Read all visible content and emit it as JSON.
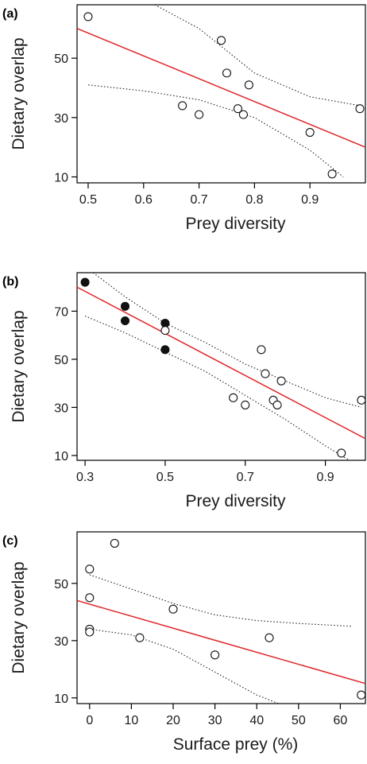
{
  "colors": {
    "fit_line": "#e0262a",
    "ci_line": "#222222",
    "axis": "#000000",
    "open_marker_fill": "#ffffff",
    "filled_marker_fill": "#111111"
  },
  "chart_data": [
    {
      "type": "scatter",
      "panel": "(a)",
      "xlabel": "Prey diversity",
      "ylabel": "Dietary overlap",
      "xlim": [
        0.48,
        1.0
      ],
      "ylim": [
        8,
        68
      ],
      "xticks": [
        0.5,
        0.6,
        0.7,
        0.8,
        0.9
      ],
      "xtick_labels": [
        "0.5",
        "0.6",
        "0.7",
        "0.8",
        "0.9"
      ],
      "yticks": [
        10,
        30,
        50
      ],
      "ytick_labels": [
        "10",
        "30",
        "50"
      ],
      "points": [
        {
          "x": 0.5,
          "y": 64,
          "filled": false
        },
        {
          "x": 0.67,
          "y": 34,
          "filled": false
        },
        {
          "x": 0.7,
          "y": 31,
          "filled": false
        },
        {
          "x": 0.74,
          "y": 56,
          "filled": false
        },
        {
          "x": 0.75,
          "y": 45,
          "filled": false
        },
        {
          "x": 0.77,
          "y": 33,
          "filled": false
        },
        {
          "x": 0.78,
          "y": 31,
          "filled": false
        },
        {
          "x": 0.79,
          "y": 41,
          "filled": false
        },
        {
          "x": 0.9,
          "y": 25,
          "filled": false
        },
        {
          "x": 0.94,
          "y": 11,
          "filled": false
        },
        {
          "x": 0.99,
          "y": 33,
          "filled": false
        }
      ],
      "fit": [
        [
          0.48,
          60
        ],
        [
          1.0,
          20
        ]
      ],
      "ci_upper": [
        [
          0.62,
          68
        ],
        [
          0.7,
          60
        ],
        [
          0.8,
          45
        ],
        [
          0.9,
          37
        ],
        [
          0.99,
          34
        ]
      ],
      "ci_lower": [
        [
          0.5,
          41
        ],
        [
          0.6,
          39
        ],
        [
          0.7,
          36
        ],
        [
          0.8,
          30
        ],
        [
          0.9,
          19
        ],
        [
          0.96,
          10
        ]
      ]
    },
    {
      "type": "scatter",
      "panel": "(b)",
      "xlabel": "Prey diversity",
      "ylabel": "Dietary overlap",
      "xlim": [
        0.28,
        1.0
      ],
      "ylim": [
        8,
        86
      ],
      "xticks": [
        0.3,
        0.5,
        0.7,
        0.9
      ],
      "xtick_labels": [
        "0.3",
        "0.5",
        "0.7",
        "0.9"
      ],
      "yticks": [
        10,
        30,
        50,
        70
      ],
      "ytick_labels": [
        "10",
        "30",
        "50",
        "70"
      ],
      "points": [
        {
          "x": 0.3,
          "y": 82,
          "filled": true
        },
        {
          "x": 0.4,
          "y": 72,
          "filled": true
        },
        {
          "x": 0.4,
          "y": 66,
          "filled": true
        },
        {
          "x": 0.5,
          "y": 65,
          "filled": true
        },
        {
          "x": 0.5,
          "y": 62,
          "filled": false
        },
        {
          "x": 0.5,
          "y": 54,
          "filled": true
        },
        {
          "x": 0.67,
          "y": 34,
          "filled": false
        },
        {
          "x": 0.7,
          "y": 31,
          "filled": false
        },
        {
          "x": 0.74,
          "y": 54,
          "filled": false
        },
        {
          "x": 0.75,
          "y": 44,
          "filled": false
        },
        {
          "x": 0.77,
          "y": 33,
          "filled": false
        },
        {
          "x": 0.78,
          "y": 31,
          "filled": false
        },
        {
          "x": 0.79,
          "y": 41,
          "filled": false
        },
        {
          "x": 0.94,
          "y": 11,
          "filled": false
        },
        {
          "x": 0.99,
          "y": 33,
          "filled": false
        }
      ],
      "fit": [
        [
          0.28,
          80
        ],
        [
          1.0,
          17
        ]
      ],
      "ci_upper": [
        [
          0.32,
          86
        ],
        [
          0.4,
          76
        ],
        [
          0.5,
          65
        ],
        [
          0.6,
          57
        ],
        [
          0.7,
          48
        ],
        [
          0.8,
          41
        ],
        [
          0.9,
          34
        ],
        [
          0.99,
          30
        ]
      ],
      "ci_lower": [
        [
          0.3,
          68
        ],
        [
          0.4,
          61
        ],
        [
          0.5,
          53
        ],
        [
          0.6,
          45
        ],
        [
          0.7,
          35
        ],
        [
          0.8,
          25
        ],
        [
          0.9,
          14
        ],
        [
          0.96,
          8
        ]
      ]
    },
    {
      "type": "scatter",
      "panel": "(c)",
      "xlabel": "Surface prey (%)",
      "ylabel": "Dietary overlap",
      "xlim": [
        -3,
        66
      ],
      "ylim": [
        8,
        68
      ],
      "xticks": [
        0,
        10,
        20,
        30,
        40,
        50,
        60
      ],
      "xtick_labels": [
        "0",
        "10",
        "20",
        "30",
        "40",
        "50",
        "60"
      ],
      "yticks": [
        10,
        30,
        50
      ],
      "ytick_labels": [
        "10",
        "30",
        "50"
      ],
      "points": [
        {
          "x": 6,
          "y": 64,
          "filled": false
        },
        {
          "x": 0,
          "y": 55,
          "filled": false
        },
        {
          "x": 0,
          "y": 45,
          "filled": false
        },
        {
          "x": 0,
          "y": 34,
          "filled": false
        },
        {
          "x": 0,
          "y": 33,
          "filled": false
        },
        {
          "x": 12,
          "y": 31,
          "filled": false
        },
        {
          "x": 20,
          "y": 41,
          "filled": false
        },
        {
          "x": 30,
          "y": 25,
          "filled": false
        },
        {
          "x": 43,
          "y": 31,
          "filled": false
        },
        {
          "x": 65,
          "y": 11,
          "filled": false
        }
      ],
      "fit": [
        [
          -3,
          44
        ],
        [
          66,
          15
        ]
      ],
      "ci_upper": [
        [
          0,
          53
        ],
        [
          10,
          48
        ],
        [
          20,
          43
        ],
        [
          30,
          39
        ],
        [
          40,
          37
        ],
        [
          50,
          36
        ],
        [
          63,
          35
        ]
      ],
      "ci_lower": [
        [
          0,
          34
        ],
        [
          10,
          32
        ],
        [
          20,
          27
        ],
        [
          30,
          19
        ],
        [
          40,
          11
        ],
        [
          47,
          7
        ]
      ]
    }
  ]
}
